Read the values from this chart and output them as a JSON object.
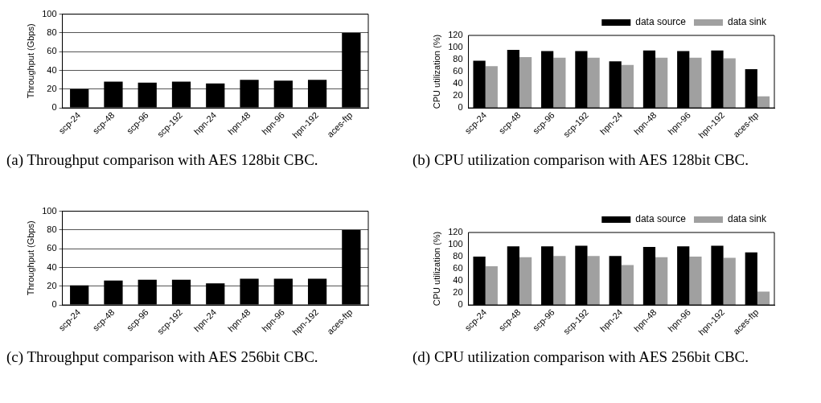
{
  "chart_data": [
    {
      "type": "bar",
      "ylabel": "Throughput (Gbps)",
      "categories": [
        "scp-24",
        "scp-48",
        "scp-96",
        "scp-192",
        "hpn-24",
        "hpn-48",
        "hpn-96",
        "hpn-192",
        "aces-ftp"
      ],
      "series": [
        {
          "color": "#000000",
          "values": [
            20,
            28,
            27,
            28,
            26,
            30,
            29,
            30,
            80
          ]
        }
      ],
      "ylim": [
        0,
        100
      ],
      "yticks": [
        0,
        20,
        40,
        60,
        80,
        100
      ],
      "grid": "y",
      "legend": false,
      "annotations": [
        "(a) Throughput comparison with AES 128bit CBC."
      ]
    },
    {
      "type": "bar",
      "ylabel": "CPU utilization (%)",
      "categories": [
        "scp-24",
        "scp-48",
        "scp-96",
        "scp-192",
        "hpn-24",
        "hpn-48",
        "hpn-96",
        "hpn-192",
        "aces-ftp"
      ],
      "series": [
        {
          "name": "data source",
          "color": "#000000",
          "values": [
            78,
            96,
            94,
            94,
            77,
            95,
            94,
            95,
            64
          ]
        },
        {
          "name": "data sink",
          "color": "#a0a0a0",
          "values": [
            69,
            84,
            83,
            83,
            71,
            83,
            83,
            82,
            19
          ]
        }
      ],
      "ylim": [
        0,
        120
      ],
      "yticks": [
        0,
        20,
        40,
        60,
        80,
        100,
        120
      ],
      "grid": false,
      "legend": "top",
      "annotations": [
        "(b) CPU utilization comparison with AES 128bit CBC."
      ]
    },
    {
      "type": "bar",
      "ylabel": "Throughput (Gbps)",
      "categories": [
        "scp-24",
        "scp-48",
        "scp-96",
        "scp-192",
        "hpn-24",
        "hpn-48",
        "hpn-96",
        "hpn-192",
        "aces-ftp"
      ],
      "series": [
        {
          "color": "#000000",
          "values": [
            21,
            26,
            27,
            27,
            23,
            28,
            28,
            28,
            80
          ]
        }
      ],
      "ylim": [
        0,
        100
      ],
      "yticks": [
        0,
        20,
        40,
        60,
        80,
        100
      ],
      "grid": "y",
      "legend": false,
      "annotations": [
        "(c) Throughput comparison with AES 256bit CBC."
      ]
    },
    {
      "type": "bar",
      "ylabel": "CPU utilization (%)",
      "categories": [
        "scp-24",
        "scp-48",
        "scp-96",
        "scp-192",
        "hpn-24",
        "hpn-48",
        "hpn-96",
        "hpn-192",
        "aces-ftp"
      ],
      "series": [
        {
          "name": "data source",
          "color": "#000000",
          "values": [
            80,
            97,
            97,
            98,
            81,
            96,
            97,
            98,
            87
          ]
        },
        {
          "name": "data sink",
          "color": "#a0a0a0",
          "values": [
            64,
            79,
            81,
            81,
            66,
            79,
            80,
            78,
            22
          ]
        }
      ],
      "ylim": [
        0,
        120
      ],
      "yticks": [
        0,
        20,
        40,
        60,
        80,
        100,
        120
      ],
      "grid": false,
      "legend": "top",
      "annotations": [
        "(d) CPU utilization comparison with AES 256bit CBC."
      ]
    }
  ]
}
